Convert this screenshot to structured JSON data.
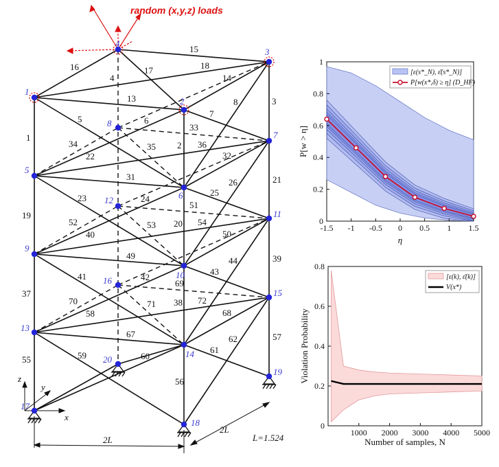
{
  "truss": {
    "title": "random (x,y,z) loads",
    "dim_width": "2L",
    "dim_depth": "2L",
    "dim_L": "L=1.524",
    "axes": {
      "x": "x",
      "y": "y",
      "z": "z"
    },
    "nodes": [
      "1",
      "2",
      "3",
      "4",
      "5",
      "6",
      "7",
      "8",
      "9",
      "10",
      "11",
      "12",
      "13",
      "14",
      "15",
      "16",
      "17",
      "18",
      "19",
      "20"
    ],
    "members": [
      "1",
      "2",
      "3",
      "4",
      "5",
      "6",
      "7",
      "8",
      "13",
      "14",
      "15",
      "16",
      "17",
      "18",
      "19",
      "20",
      "21",
      "22",
      "23",
      "24",
      "25",
      "26",
      "31",
      "32",
      "33",
      "34",
      "35",
      "36",
      "37",
      "38",
      "39",
      "40",
      "41",
      "42",
      "43",
      "44",
      "49",
      "50",
      "51",
      "52",
      "53",
      "54",
      "55",
      "56",
      "57",
      "58",
      "59",
      "60",
      "61",
      "62",
      "67",
      "68",
      "69",
      "70",
      "71",
      "72"
    ]
  },
  "chart_data": [
    {
      "type": "line",
      "xlabel": "η",
      "ylabel": "P[w > η]",
      "xlim": [
        -1.5,
        1.5
      ],
      "ylim": [
        0,
        1
      ],
      "xticks": [
        "-1.5",
        "-1",
        "-0.5",
        "0",
        "0.5",
        "1",
        "1.5"
      ],
      "yticks": [
        "0",
        "0.2",
        "0.4",
        "0.6",
        "0.8",
        "1"
      ],
      "legend": [
        "[ε(s*_N), ε̄(s*_N)]",
        "P[w(x*,δ) ≥ η] (D_HF)"
      ],
      "legend_position": "top-right",
      "colors": {
        "band": "#b9c3f3",
        "line": "#c8102e",
        "band_edge": "#6f7fc6"
      },
      "x": [
        -1.5,
        -0.9,
        -0.3,
        0.3,
        0.9,
        1.5
      ],
      "series": [
        {
          "name": "P[w(x*,δ) ≥ η] (D_HF)",
          "values": [
            0.64,
            0.46,
            0.28,
            0.15,
            0.08,
            0.03
          ]
        }
      ],
      "outer_band": {
        "x": [
          -1.5,
          -1.0,
          -0.5,
          0.0,
          0.5,
          1.0,
          1.5
        ],
        "lower": [
          0.26,
          0.18,
          0.1,
          0.05,
          0.02,
          0.005,
          0.0
        ],
        "upper": [
          0.97,
          0.93,
          0.85,
          0.75,
          0.65,
          0.57,
          0.51
        ]
      }
    },
    {
      "type": "line",
      "xlabel": "Number of samples, N",
      "ylabel": "Violation Probability",
      "xlim": [
        0,
        5000
      ],
      "ylim": [
        0,
        0.8
      ],
      "xticks": [
        "1000",
        "2000",
        "3000",
        "4000",
        "5000"
      ],
      "yticks": [
        "0",
        "0.2",
        "0.4",
        "0.6",
        "0.8"
      ],
      "legend": [
        "[ε(k), ε̄(k)]",
        "V(x*)"
      ],
      "legend_position": "top-right",
      "colors": {
        "band": "#fbdada",
        "line": "#000000",
        "band_edge": "#e39a9a"
      },
      "x": [
        100,
        500,
        1000,
        1500,
        2000,
        3000,
        4000,
        5000
      ],
      "series": [
        {
          "name": "V(x*)",
          "values": [
            0.225,
            0.21,
            0.21,
            0.21,
            0.21,
            0.21,
            0.21,
            0.21
          ]
        }
      ],
      "band": {
        "lower": [
          0.02,
          0.08,
          0.13,
          0.15,
          0.16,
          0.165,
          0.17,
          0.175
        ],
        "upper": [
          0.78,
          0.3,
          0.28,
          0.27,
          0.265,
          0.26,
          0.255,
          0.25
        ]
      }
    }
  ]
}
